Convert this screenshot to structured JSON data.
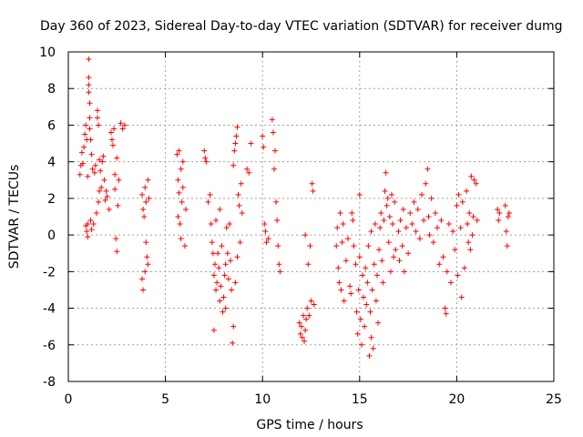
{
  "chart_data": {
    "type": "scatter",
    "title": "Day 360 of 2023, Sidereal Day-to-day VTEC variation (SDTVAR) for receiver dumg",
    "xlabel": "GPS time / hours",
    "ylabel": "SDTVAR / TECUs",
    "xlim": [
      0,
      25
    ],
    "ylim": [
      -8,
      10
    ],
    "xticks": [
      0,
      5,
      10,
      15,
      20,
      25
    ],
    "yticks": [
      -8,
      -6,
      -4,
      -2,
      0,
      2,
      4,
      6,
      8,
      10
    ],
    "grid": true,
    "marker": "+",
    "color": "#ff0000",
    "series": [
      {
        "name": "SDTVAR",
        "points": [
          [
            0.6,
            3.3
          ],
          [
            0.65,
            3.8
          ],
          [
            0.7,
            4.5
          ],
          [
            0.75,
            3.9
          ],
          [
            0.8,
            4.8
          ],
          [
            0.85,
            5.5
          ],
          [
            0.9,
            0.5
          ],
          [
            0.9,
            6.0
          ],
          [
            0.95,
            0.2
          ],
          [
            0.95,
            5.2
          ],
          [
            1.0,
            -0.1
          ],
          [
            1.0,
            0.6
          ],
          [
            1.0,
            3.2
          ],
          [
            1.05,
            9.6
          ],
          [
            1.05,
            8.6
          ],
          [
            1.05,
            8.2
          ],
          [
            1.05,
            7.8
          ],
          [
            1.1,
            7.2
          ],
          [
            1.1,
            6.4
          ],
          [
            1.1,
            5.8
          ],
          [
            1.15,
            0.8
          ],
          [
            1.15,
            5.2
          ],
          [
            1.2,
            0.3
          ],
          [
            1.2,
            4.4
          ],
          [
            1.25,
            3.6
          ],
          [
            1.3,
            0.6
          ],
          [
            1.35,
            3.4
          ],
          [
            1.4,
            3.8
          ],
          [
            1.45,
            1.2
          ],
          [
            1.5,
            6.8
          ],
          [
            1.5,
            6.4
          ],
          [
            1.55,
            1.8
          ],
          [
            1.55,
            6.0
          ],
          [
            1.6,
            2.4
          ],
          [
            1.6,
            4.1
          ],
          [
            1.65,
            3.5
          ],
          [
            1.7,
            2.6
          ],
          [
            1.75,
            4.0
          ],
          [
            1.8,
            4.3
          ],
          [
            1.85,
            3.0
          ],
          [
            1.9,
            1.9
          ],
          [
            1.95,
            2.4
          ],
          [
            2.0,
            2.1
          ],
          [
            2.1,
            1.4
          ],
          [
            2.2,
            5.6
          ],
          [
            2.25,
            5.2
          ],
          [
            2.3,
            4.9
          ],
          [
            2.35,
            5.8
          ],
          [
            2.4,
            3.3
          ],
          [
            2.4,
            2.5
          ],
          [
            2.45,
            -0.2
          ],
          [
            2.5,
            -0.9
          ],
          [
            2.5,
            4.2
          ],
          [
            2.55,
            1.6
          ],
          [
            2.6,
            3.0
          ],
          [
            2.7,
            6.1
          ],
          [
            2.8,
            5.8
          ],
          [
            2.9,
            6.0
          ],
          [
            3.8,
            2.2
          ],
          [
            3.8,
            -2.4
          ],
          [
            3.85,
            1.4
          ],
          [
            3.85,
            -3.0
          ],
          [
            3.9,
            1.0
          ],
          [
            3.95,
            2.6
          ],
          [
            3.95,
            -2.0
          ],
          [
            4.0,
            -0.4
          ],
          [
            4.0,
            1.8
          ],
          [
            4.05,
            -1.2
          ],
          [
            4.1,
            3.0
          ],
          [
            4.1,
            -1.6
          ],
          [
            4.15,
            2.0
          ],
          [
            5.6,
            4.4
          ],
          [
            5.65,
            1.0
          ],
          [
            5.65,
            3.0
          ],
          [
            5.7,
            2.3
          ],
          [
            5.7,
            4.6
          ],
          [
            5.75,
            0.6
          ],
          [
            5.8,
            -0.2
          ],
          [
            5.8,
            3.6
          ],
          [
            5.85,
            1.8
          ],
          [
            5.9,
            4.0
          ],
          [
            5.9,
            2.6
          ],
          [
            6.0,
            -0.6
          ],
          [
            6.05,
            1.4
          ],
          [
            7.0,
            4.6
          ],
          [
            7.05,
            4.2
          ],
          [
            7.1,
            4.0
          ],
          [
            7.2,
            1.8
          ],
          [
            7.3,
            2.2
          ],
          [
            7.35,
            0.6
          ],
          [
            7.4,
            -0.4
          ],
          [
            7.45,
            -1.0
          ],
          [
            7.5,
            -5.2
          ],
          [
            7.5,
            -2.2
          ],
          [
            7.55,
            -1.6
          ],
          [
            7.6,
            0.8
          ],
          [
            7.6,
            -3.0
          ],
          [
            7.65,
            -2.6
          ],
          [
            7.7,
            -1.0
          ],
          [
            7.75,
            -1.8
          ],
          [
            7.8,
            -3.6
          ],
          [
            7.8,
            1.4
          ],
          [
            7.85,
            -2.8
          ],
          [
            7.9,
            -0.6
          ],
          [
            7.95,
            -4.2
          ],
          [
            8.0,
            -3.4
          ],
          [
            8.05,
            -2.2
          ],
          [
            8.1,
            -1.6
          ],
          [
            8.1,
            -4.0
          ],
          [
            8.15,
            0.4
          ],
          [
            8.2,
            -1.0
          ],
          [
            8.25,
            -2.4
          ],
          [
            8.3,
            0.6
          ],
          [
            8.35,
            -1.4
          ],
          [
            8.4,
            -3.0
          ],
          [
            8.45,
            -5.9
          ],
          [
            8.5,
            -5.0
          ],
          [
            8.5,
            3.8
          ],
          [
            8.55,
            4.6
          ],
          [
            8.6,
            -2.6
          ],
          [
            8.6,
            5.0
          ],
          [
            8.65,
            5.4
          ],
          [
            8.7,
            -1.2
          ],
          [
            8.7,
            5.9
          ],
          [
            8.75,
            2.2
          ],
          [
            8.8,
            1.6
          ],
          [
            8.85,
            -0.4
          ],
          [
            8.9,
            2.8
          ],
          [
            8.95,
            1.2
          ],
          [
            9.2,
            3.6
          ],
          [
            9.3,
            3.4
          ],
          [
            9.4,
            5.0
          ],
          [
            10.0,
            5.4
          ],
          [
            10.05,
            4.8
          ],
          [
            10.1,
            0.6
          ],
          [
            10.15,
            0.2
          ],
          [
            10.2,
            -0.4
          ],
          [
            10.3,
            -0.2
          ],
          [
            10.5,
            6.3
          ],
          [
            10.55,
            5.6
          ],
          [
            10.6,
            3.6
          ],
          [
            10.65,
            4.6
          ],
          [
            10.7,
            1.8
          ],
          [
            10.75,
            0.8
          ],
          [
            10.8,
            -0.6
          ],
          [
            10.85,
            -1.6
          ],
          [
            10.9,
            -2.0
          ],
          [
            11.9,
            -4.8
          ],
          [
            11.95,
            -5.4
          ],
          [
            12.0,
            -5.0
          ],
          [
            12.05,
            -5.6
          ],
          [
            12.1,
            -4.4
          ],
          [
            12.15,
            -5.8
          ],
          [
            12.2,
            -5.2
          ],
          [
            12.2,
            0.0
          ],
          [
            12.25,
            -4.6
          ],
          [
            12.3,
            -4.0
          ],
          [
            12.35,
            -1.6
          ],
          [
            12.4,
            -4.4
          ],
          [
            12.45,
            -0.6
          ],
          [
            12.5,
            -3.6
          ],
          [
            12.55,
            2.8
          ],
          [
            12.6,
            2.4
          ],
          [
            12.65,
            -3.8
          ],
          [
            13.8,
            -0.6
          ],
          [
            13.85,
            0.4
          ],
          [
            13.9,
            -1.8
          ],
          [
            13.95,
            -2.6
          ],
          [
            14.0,
            1.2
          ],
          [
            14.05,
            -3.0
          ],
          [
            14.1,
            -0.4
          ],
          [
            14.15,
            0.6
          ],
          [
            14.2,
            -3.6
          ],
          [
            14.3,
            -1.4
          ],
          [
            14.4,
            -0.2
          ],
          [
            14.5,
            -2.8
          ],
          [
            14.55,
            -3.2
          ],
          [
            14.6,
            1.2
          ],
          [
            14.65,
            0.8
          ],
          [
            14.7,
            -0.6
          ],
          [
            14.8,
            -1.6
          ],
          [
            14.85,
            -4.2
          ],
          [
            14.9,
            -5.4
          ],
          [
            14.95,
            -3.0
          ],
          [
            15.0,
            2.2
          ],
          [
            15.0,
            -1.2
          ],
          [
            15.05,
            -4.6
          ],
          [
            15.1,
            -6.0
          ],
          [
            15.15,
            -2.2
          ],
          [
            15.2,
            -3.4
          ],
          [
            15.25,
            -5.0
          ],
          [
            15.3,
            -1.8
          ],
          [
            15.35,
            -3.8
          ],
          [
            15.4,
            -2.6
          ],
          [
            15.45,
            -0.6
          ],
          [
            15.5,
            -6.6
          ],
          [
            15.55,
            -4.2
          ],
          [
            15.6,
            0.2
          ],
          [
            15.6,
            -5.6
          ],
          [
            15.65,
            -3.0
          ],
          [
            15.7,
            -6.2
          ],
          [
            15.75,
            -1.6
          ],
          [
            15.8,
            0.6
          ],
          [
            15.85,
            -3.6
          ],
          [
            15.9,
            -2.2
          ],
          [
            15.95,
            -4.8
          ],
          [
            16.0,
            -0.8
          ],
          [
            16.05,
            0.4
          ],
          [
            16.1,
            1.2
          ],
          [
            16.15,
            -1.4
          ],
          [
            16.2,
            -2.6
          ],
          [
            16.25,
            0.8
          ],
          [
            16.3,
            2.4
          ],
          [
            16.35,
            3.4
          ],
          [
            16.4,
            1.6
          ],
          [
            16.45,
            2.0
          ],
          [
            16.5,
            -0.4
          ],
          [
            16.55,
            1.0
          ],
          [
            16.6,
            -2.0
          ],
          [
            16.65,
            2.2
          ],
          [
            16.7,
            0.6
          ],
          [
            16.75,
            -1.2
          ],
          [
            16.8,
            1.8
          ],
          [
            16.85,
            -0.8
          ],
          [
            17.0,
            0.2
          ],
          [
            17.05,
            -1.4
          ],
          [
            17.1,
            0.8
          ],
          [
            17.2,
            -0.6
          ],
          [
            17.25,
            1.4
          ],
          [
            17.3,
            -2.0
          ],
          [
            17.4,
            0.4
          ],
          [
            17.5,
            -1.0
          ],
          [
            17.6,
            1.2
          ],
          [
            17.7,
            0.6
          ],
          [
            17.8,
            1.8
          ],
          [
            17.9,
            0.2
          ],
          [
            18.0,
            1.4
          ],
          [
            18.1,
            -0.2
          ],
          [
            18.2,
            2.2
          ],
          [
            18.3,
            0.8
          ],
          [
            18.4,
            2.8
          ],
          [
            18.5,
            3.6
          ],
          [
            18.55,
            1.0
          ],
          [
            18.6,
            0.0
          ],
          [
            18.7,
            2.0
          ],
          [
            18.8,
            -0.4
          ],
          [
            18.9,
            1.2
          ],
          [
            19.0,
            0.4
          ],
          [
            19.1,
            -1.6
          ],
          [
            19.2,
            0.8
          ],
          [
            19.3,
            -1.2
          ],
          [
            19.4,
            -4.0
          ],
          [
            19.45,
            -4.3
          ],
          [
            19.5,
            -2.0
          ],
          [
            19.6,
            0.6
          ],
          [
            19.7,
            -2.6
          ],
          [
            19.8,
            0.2
          ],
          [
            19.9,
            -0.8
          ],
          [
            20.0,
            1.6
          ],
          [
            20.05,
            -2.2
          ],
          [
            20.1,
            2.2
          ],
          [
            20.2,
            0.4
          ],
          [
            20.25,
            -3.4
          ],
          [
            20.3,
            1.8
          ],
          [
            20.4,
            -1.8
          ],
          [
            20.5,
            2.4
          ],
          [
            20.55,
            0.6
          ],
          [
            20.6,
            -0.4
          ],
          [
            20.65,
            1.2
          ],
          [
            20.7,
            -0.8
          ],
          [
            20.75,
            3.2
          ],
          [
            20.8,
            0.0
          ],
          [
            20.85,
            1.0
          ],
          [
            20.9,
            3.0
          ],
          [
            21.0,
            2.8
          ],
          [
            21.05,
            0.8
          ],
          [
            22.1,
            1.4
          ],
          [
            22.15,
            0.8
          ],
          [
            22.2,
            1.2
          ],
          [
            22.5,
            1.6
          ],
          [
            22.55,
            0.2
          ],
          [
            22.6,
            -0.6
          ],
          [
            22.65,
            1.0
          ],
          [
            22.7,
            1.2
          ]
        ]
      }
    ]
  }
}
